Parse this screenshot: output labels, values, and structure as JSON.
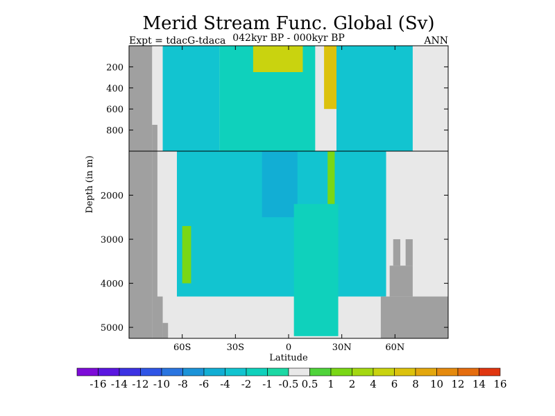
{
  "chart_data": {
    "type": "heatmap",
    "title": "Merid Stream Func. Global (Sv)",
    "subtitle_left": "Expt = tdacG-tdaca",
    "subtitle_center": "042kyr BP - 000kyr BP",
    "subtitle_right": "ANN",
    "xlabel": "Latitude",
    "ylabel": "Depth (in m)",
    "xlim": [
      -90,
      90
    ],
    "y_upper_range": [
      0,
      1000
    ],
    "y_lower_range": [
      1000,
      5250
    ],
    "x_ticks": [
      {
        "value": -60,
        "label": "60S"
      },
      {
        "value": -30,
        "label": "30S"
      },
      {
        "value": 0,
        "label": "0"
      },
      {
        "value": 30,
        "label": "30N"
      },
      {
        "value": 60,
        "label": "60N"
      }
    ],
    "y_ticks_upper": [
      {
        "value": 200,
        "label": "200"
      },
      {
        "value": 400,
        "label": "400"
      },
      {
        "value": 600,
        "label": "600"
      },
      {
        "value": 800,
        "label": "800"
      }
    ],
    "y_ticks_lower": [
      {
        "value": 2000,
        "label": "2000"
      },
      {
        "value": 3000,
        "label": "3000"
      },
      {
        "value": 4000,
        "label": "4000"
      },
      {
        "value": 5000,
        "label": "5000"
      }
    ],
    "colorbar": {
      "labels": [
        "-16",
        "-14",
        "-12",
        "-10",
        "-8",
        "-6",
        "-4",
        "-2",
        "-1",
        "-0.5",
        "0.5",
        "1",
        "2",
        "4",
        "6",
        "8",
        "10",
        "12",
        "14",
        "16"
      ],
      "colors": [
        "#7d0bd8",
        "#5a16e0",
        "#3c32e3",
        "#2f55e6",
        "#2a75e0",
        "#1c93d8",
        "#12aed4",
        "#12c4d0",
        "#0fd1bc",
        "#1cd8a4",
        "#e8e8e8",
        "#4fd33a",
        "#7ad716",
        "#a4d812",
        "#c9d30f",
        "#dcc20d",
        "#e3a70e",
        "#e58a0e",
        "#e56d0f",
        "#e03610"
      ]
    },
    "field_regions": [
      {
        "lat": [
          -71,
          -39
        ],
        "depth": [
          0,
          1000
        ],
        "level": "-2"
      },
      {
        "lat": [
          -39,
          15
        ],
        "depth": [
          0,
          1000
        ],
        "level": "-1"
      },
      {
        "lat": [
          -20,
          8
        ],
        "depth": [
          0,
          250
        ],
        "level": "6"
      },
      {
        "lat": [
          20,
          27
        ],
        "depth": [
          0,
          600
        ],
        "level": "8"
      },
      {
        "lat": [
          27,
          70
        ],
        "depth": [
          0,
          1000
        ],
        "level": "-2"
      },
      {
        "lat": [
          -63,
          55
        ],
        "depth": [
          1000,
          4300
        ],
        "level": "-2"
      },
      {
        "lat": [
          -60,
          -55
        ],
        "depth": [
          2700,
          4000
        ],
        "level": "2"
      },
      {
        "lat": [
          22,
          26
        ],
        "depth": [
          1000,
          2700
        ],
        "level": "2"
      },
      {
        "lat": [
          -15,
          5
        ],
        "depth": [
          1000,
          2500
        ],
        "level": "-4"
      },
      {
        "lat": [
          3,
          28
        ],
        "depth": [
          2200,
          5200
        ],
        "level": "-1"
      }
    ],
    "topography": [
      {
        "lat": [
          -90,
          -77
        ],
        "depth": [
          0,
          5250
        ]
      },
      {
        "lat": [
          -77,
          -74
        ],
        "depth": [
          750,
          5250
        ]
      },
      {
        "lat": [
          -75,
          -71
        ],
        "depth": [
          4300,
          5250
        ]
      },
      {
        "lat": [
          -71,
          -68
        ],
        "depth": [
          4900,
          5250
        ]
      },
      {
        "lat": [
          52,
          90
        ],
        "depth": [
          4300,
          5250
        ]
      },
      {
        "lat": [
          57,
          70
        ],
        "depth": [
          3600,
          4300
        ]
      },
      {
        "lat": [
          59,
          63
        ],
        "depth": [
          3000,
          3600
        ]
      },
      {
        "lat": [
          66,
          70
        ],
        "depth": [
          3000,
          3600
        ]
      }
    ]
  }
}
